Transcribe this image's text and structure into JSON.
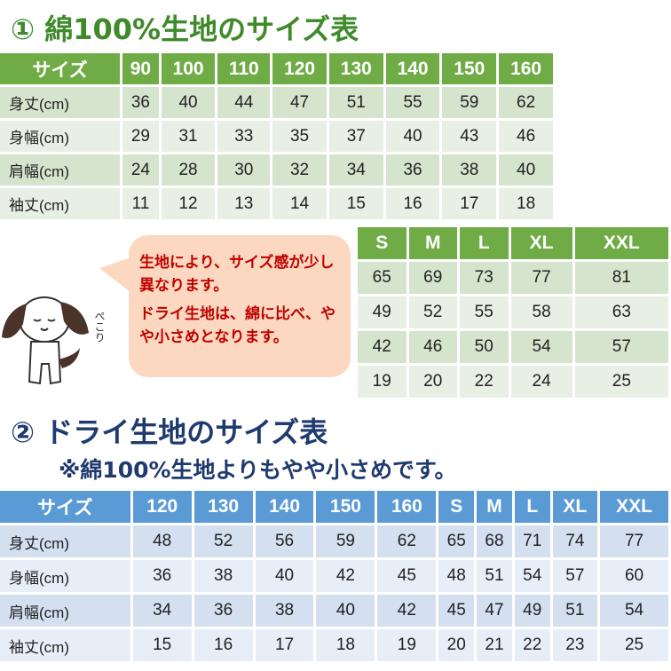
{
  "section1": {
    "title": "① 綿100%生地のサイズ表",
    "header": [
      "サイズ",
      "90",
      "100",
      "110",
      "120",
      "130",
      "140",
      "150",
      "160"
    ],
    "rows": [
      [
        "身丈(cm)",
        "36",
        "40",
        "44",
        "47",
        "51",
        "55",
        "59",
        "62"
      ],
      [
        "身幅(cm)",
        "29",
        "31",
        "33",
        "35",
        "37",
        "40",
        "43",
        "46"
      ],
      [
        "肩幅(cm)",
        "24",
        "28",
        "30",
        "32",
        "34",
        "36",
        "38",
        "40"
      ],
      [
        "袖丈(cm)",
        "11",
        "12",
        "13",
        "14",
        "15",
        "16",
        "17",
        "18"
      ]
    ]
  },
  "section1b": {
    "header": [
      "S",
      "M",
      "L",
      "XL",
      "XXL"
    ],
    "rows": [
      [
        "65",
        "69",
        "73",
        "77",
        "81"
      ],
      [
        "49",
        "52",
        "55",
        "58",
        "63"
      ],
      [
        "42",
        "46",
        "50",
        "54",
        "57"
      ],
      [
        "19",
        "20",
        "22",
        "24",
        "25"
      ]
    ]
  },
  "bubble": {
    "line1": "生地により、サイズ感が少し異なります。",
    "line2": "ドライ生地は、綿に比べ、やや小さめとなります。"
  },
  "mascot": {
    "icon": "dog-bowing-icon",
    "sound": "ぺこり"
  },
  "section2": {
    "title": "② ドライ生地のサイズ表",
    "subtitle": "※綿100%生地よりもやや小さめです。",
    "header": [
      "サイズ",
      "120",
      "130",
      "140",
      "150",
      "160",
      "S",
      "M",
      "L",
      "XL",
      "XXL"
    ],
    "rows": [
      [
        "身丈(cm)",
        "48",
        "52",
        "56",
        "59",
        "62",
        "65",
        "68",
        "71",
        "74",
        "77"
      ],
      [
        "身幅(cm)",
        "36",
        "38",
        "40",
        "42",
        "45",
        "48",
        "51",
        "54",
        "57",
        "60"
      ],
      [
        "肩幅(cm)",
        "34",
        "36",
        "38",
        "40",
        "42",
        "45",
        "47",
        "49",
        "51",
        "54"
      ],
      [
        "袖丈(cm)",
        "15",
        "16",
        "17",
        "18",
        "19",
        "20",
        "21",
        "22",
        "23",
        "25"
      ]
    ]
  },
  "colors": {
    "green_header": "#6fac46",
    "blue_header": "#5b9bd5",
    "bubble_text": "#c00000",
    "bubble_bg": "#fbd8bf"
  }
}
